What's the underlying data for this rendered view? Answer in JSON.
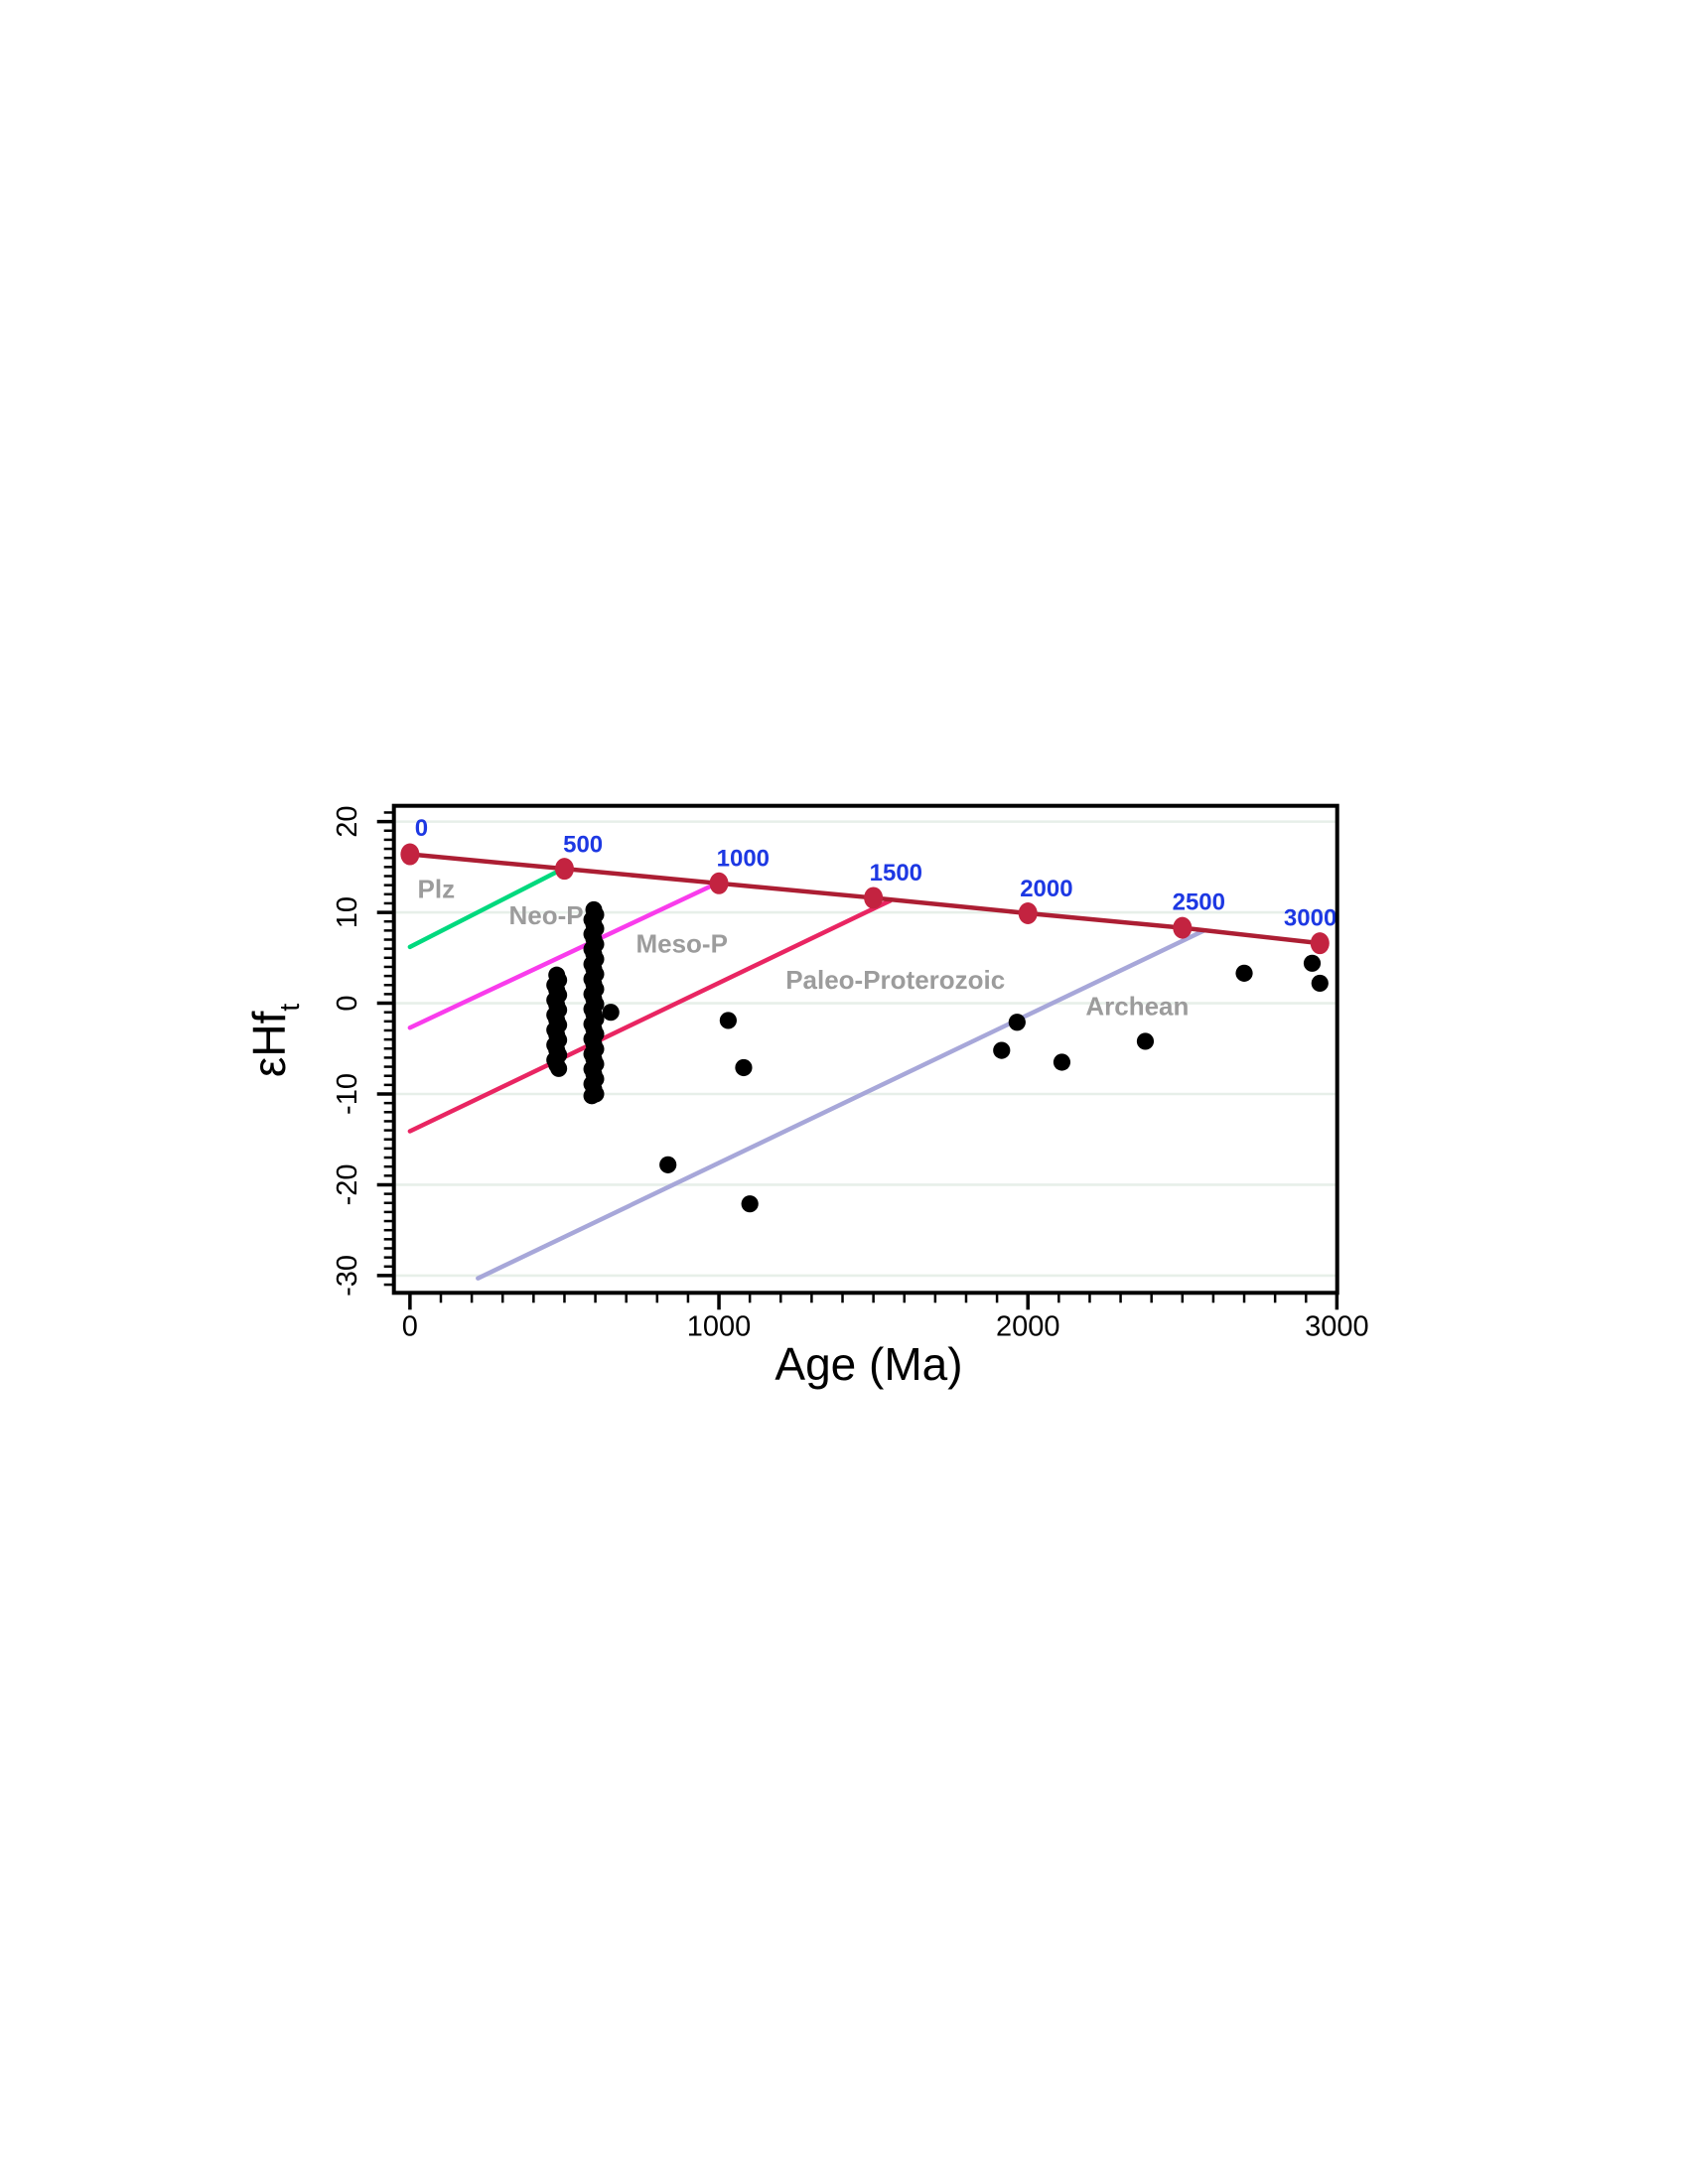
{
  "figure": {
    "background": "#ffffff"
  },
  "chart_data": {
    "type": "scatter",
    "title": "",
    "xlabel": "Age (Ma)",
    "ylabel_main": "εHf",
    "ylabel_sub": "t",
    "xlim": [
      -52,
      3001
    ],
    "ylim": [
      -31.9,
      21.74
    ],
    "grid": true,
    "grid_values": [
      -30,
      -20,
      -10,
      0,
      10,
      20
    ],
    "x_major_ticks": [
      0,
      1000,
      2000,
      3000
    ],
    "x_minor_step": 100,
    "y_major_ticks": [
      -30,
      -20,
      -10,
      0,
      10,
      20
    ],
    "y_minor_step": 1,
    "colors": {
      "dm_line": "#ac1e33",
      "dm_marker": "#c32340",
      "age_label": "#1d38e3",
      "plz": "#00d97e",
      "neo": "#f93cec",
      "meso": "#e92562",
      "archean_line": "#a7a7d9",
      "era_text": "#9c9c9c",
      "grid": "#e7efe9",
      "axis": "#000000",
      "scatter": "#000000"
    },
    "depleted_mantle": {
      "name": "depleted-mantle-evolution-curve",
      "points": [
        {
          "age": 0,
          "plot_age": 0,
          "ehf": 16.4,
          "label": "0",
          "label_age": 37,
          "label_ehf": 18.4
        },
        {
          "age": 500,
          "plot_age": 500,
          "ehf": 14.8,
          "label": "500",
          "label_age": 560,
          "label_ehf": 16.6
        },
        {
          "age": 1000,
          "plot_age": 1000,
          "ehf": 13.2,
          "label": "1000",
          "label_age": 1078,
          "label_ehf": 15.1
        },
        {
          "age": 1500,
          "plot_age": 1500,
          "ehf": 11.6,
          "label": "1500",
          "label_age": 1573,
          "label_ehf": 13.5
        },
        {
          "age": 2000,
          "plot_age": 2000,
          "ehf": 9.9,
          "label": "2000",
          "label_age": 2060,
          "label_ehf": 11.75
        },
        {
          "age": 2500,
          "plot_age": 2500,
          "ehf": 8.3,
          "label": "2500",
          "label_age": 2553,
          "label_ehf": 10.3
        },
        {
          "age": 3000,
          "plot_age": 2945,
          "ehf": 6.6,
          "label": "3000",
          "label_age": 2914,
          "label_ehf": 8.55
        }
      ]
    },
    "boundary_lines": [
      {
        "name": "phanerozoic-boundary-line",
        "color_key": "plz",
        "from": [
          0,
          6.2
        ],
        "to": [
          495,
          14.8
        ]
      },
      {
        "name": "neo-proterozoic-boundary-line",
        "color_key": "neo",
        "from": [
          0,
          -2.7
        ],
        "to": [
          990,
          13.15
        ]
      },
      {
        "name": "meso-proterozoic-boundary-line",
        "color_key": "meso",
        "from": [
          0,
          -14.1
        ],
        "to": [
          1555,
          11.3
        ]
      },
      {
        "name": "archean-boundary-line",
        "color_key": "archean_line",
        "from": [
          220,
          -30.3
        ],
        "to": [
          2570,
          8.0
        ]
      }
    ],
    "era_labels": [
      {
        "text": "Plz",
        "age": 85,
        "ehf": 11.6
      },
      {
        "text": "Neo-P",
        "age": 441,
        "ehf": 8.7
      },
      {
        "text": "Meso-P",
        "age": 880,
        "ehf": 5.6
      },
      {
        "text": "Paleo-Proterozoic",
        "age": 1571,
        "ehf": 1.6
      },
      {
        "text": "Archean",
        "age": 2354,
        "ehf": -1.3
      }
    ],
    "scatter_series": {
      "name": "zircon-ehf-analyses",
      "clusters": [
        {
          "age": 475,
          "step": 0.55,
          "segments": [
            [
              3.1,
              -7.2
            ]
          ]
        },
        {
          "age": 595,
          "step": 0.55,
          "segments": [
            [
              10.3,
              8.2
            ],
            [
              7.6,
              -10.2
            ]
          ]
        }
      ],
      "points": [
        [
          650,
          -1.0
        ],
        [
          835,
          -17.8
        ],
        [
          1030,
          -1.9
        ],
        [
          1080,
          -7.1
        ],
        [
          1100,
          -22.1
        ],
        [
          1915,
          -5.2
        ],
        [
          1965,
          -2.1
        ],
        [
          2110,
          -6.5
        ],
        [
          2380,
          -4.2
        ],
        [
          2700,
          3.3
        ],
        [
          2920,
          4.4
        ],
        [
          2945,
          2.2
        ]
      ]
    }
  }
}
